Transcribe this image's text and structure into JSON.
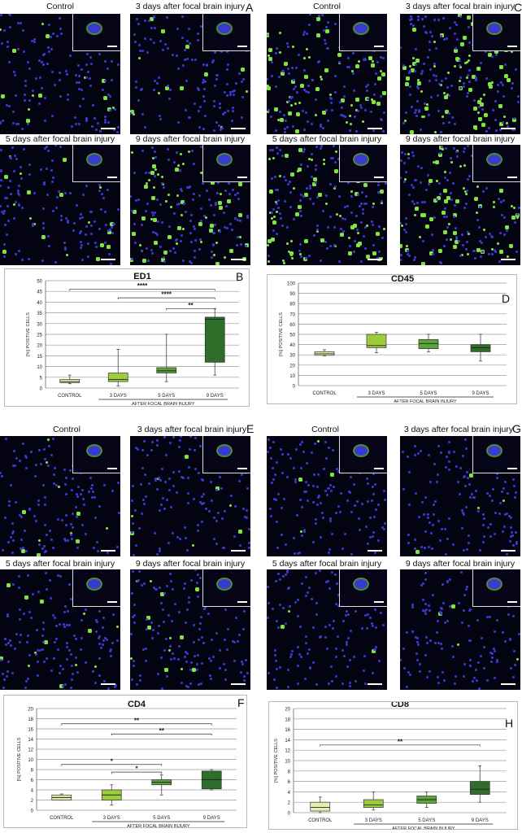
{
  "figure": {
    "panel_letters": [
      "A",
      "B",
      "C",
      "D",
      "E",
      "F",
      "G",
      "H"
    ],
    "image_captions": {
      "control": "Control",
      "day3": "3 days after focal brain injury",
      "day5": "5 days after focal brain injury",
      "day9": "9 days after focal brain injury"
    },
    "colors": {
      "nuclei": "#3a3acf",
      "marker": "#7fe640",
      "background": "#030312"
    }
  },
  "chart_data": [
    {
      "type": "boxplot",
      "title": "ED1",
      "ylabel": "[%] POSITIVE CELLS",
      "xgroup_label": "AFTER FOCAL BRAIN INJURY",
      "categories": [
        "CONTROL",
        "3 DAYS",
        "5 DAYS",
        "9 DAYS"
      ],
      "ylim": [
        0,
        50
      ],
      "ytick_step": 5,
      "boxes": [
        {
          "min": 2,
          "q1": 2.5,
          "median": 3,
          "q3": 4,
          "max": 6,
          "color": "#e7eeb0"
        },
        {
          "min": 1,
          "q1": 3,
          "median": 4,
          "q3": 7,
          "max": 18,
          "color": "#9bcc3a"
        },
        {
          "min": 3,
          "q1": 7,
          "median": 8,
          "q3": 9.5,
          "max": 25,
          "color": "#5aa53a"
        },
        {
          "min": 6,
          "q1": 12,
          "median": 32,
          "q3": 33,
          "max": 37,
          "color": "#2e6e2a"
        }
      ],
      "significance": [
        {
          "from": 0,
          "to": 3,
          "y": 46,
          "label": "****"
        },
        {
          "from": 1,
          "to": 3,
          "y": 42,
          "label": "****"
        },
        {
          "from": 2,
          "to": 3,
          "y": 37,
          "label": "**"
        }
      ]
    },
    {
      "type": "boxplot",
      "title": "CD45",
      "ylabel": "[%] POSITIVE CELLS",
      "xgroup_label": "AFTER FOCAL BRAIN INJURY",
      "categories": [
        "CONTROL",
        "3 DAYS",
        "5 DAYS",
        "9 DAYS"
      ],
      "ylim": [
        0,
        100
      ],
      "ytick_step": 10,
      "boxes": [
        {
          "min": 29,
          "q1": 29.5,
          "median": 31,
          "q3": 33,
          "max": 35,
          "color": "#e7eeb0"
        },
        {
          "min": 32,
          "q1": 37,
          "median": 39,
          "q3": 50,
          "max": 52,
          "color": "#9bcc3a"
        },
        {
          "min": 33,
          "q1": 36,
          "median": 41,
          "q3": 45,
          "max": 50,
          "color": "#5aa53a"
        },
        {
          "min": 24,
          "q1": 33,
          "median": 37,
          "q3": 40,
          "max": 50,
          "color": "#2e6e2a"
        }
      ],
      "significance": []
    },
    {
      "type": "boxplot",
      "title": "CD4",
      "ylabel": "[%] POSITIVE CELLS",
      "xgroup_label": "AFTER FOCAL BRAIN INJURY",
      "categories": [
        "CONTROL",
        "3 DAYS",
        "5 DAYS",
        "9 DAYS"
      ],
      "ylim": [
        0,
        20
      ],
      "ytick_step": 2,
      "boxes": [
        {
          "min": 2,
          "q1": 2,
          "median": 2.5,
          "q3": 3,
          "max": 3.2,
          "color": "#e7eeb0"
        },
        {
          "min": 1,
          "q1": 2,
          "median": 3,
          "q3": 4,
          "max": 5,
          "color": "#9bcc3a"
        },
        {
          "min": 3,
          "q1": 5,
          "median": 5.5,
          "q3": 6,
          "max": 7,
          "color": "#5aa53a"
        },
        {
          "min": 4,
          "q1": 4.2,
          "median": 6,
          "q3": 7.7,
          "max": 8,
          "color": "#2e6e2a"
        }
      ],
      "significance": [
        {
          "from": 0,
          "to": 3,
          "y": 17,
          "label": "**"
        },
        {
          "from": 1,
          "to": 3,
          "y": 15,
          "label": "**"
        },
        {
          "from": 0,
          "to": 2,
          "y": 9,
          "label": "*"
        },
        {
          "from": 1,
          "to": 2,
          "y": 7.5,
          "label": "*"
        }
      ]
    },
    {
      "type": "boxplot",
      "title": "CD8",
      "ylabel": "[%] POSITIVE CELLS",
      "xgroup_label": "AFTER FOCAL BRAIN INJURY",
      "categories": [
        "CONTROL",
        "3 DAYS",
        "5 DAYS",
        "9 DAYS"
      ],
      "ylim": [
        0,
        20
      ],
      "ytick_step": 2,
      "boxes": [
        {
          "min": 0,
          "q1": 0.3,
          "median": 1,
          "q3": 2,
          "max": 3,
          "color": "#e7eeb0"
        },
        {
          "min": 0.5,
          "q1": 1,
          "median": 1.5,
          "q3": 2.5,
          "max": 4,
          "color": "#9bcc3a"
        },
        {
          "min": 1,
          "q1": 1.8,
          "median": 2.5,
          "q3": 3.2,
          "max": 4,
          "color": "#5aa53a"
        },
        {
          "min": 2,
          "q1": 3.5,
          "median": 4.5,
          "q3": 6,
          "max": 9,
          "color": "#2e6e2a"
        }
      ],
      "significance": [
        {
          "from": 0,
          "to": 3,
          "y": 13,
          "label": "**"
        }
      ]
    }
  ]
}
